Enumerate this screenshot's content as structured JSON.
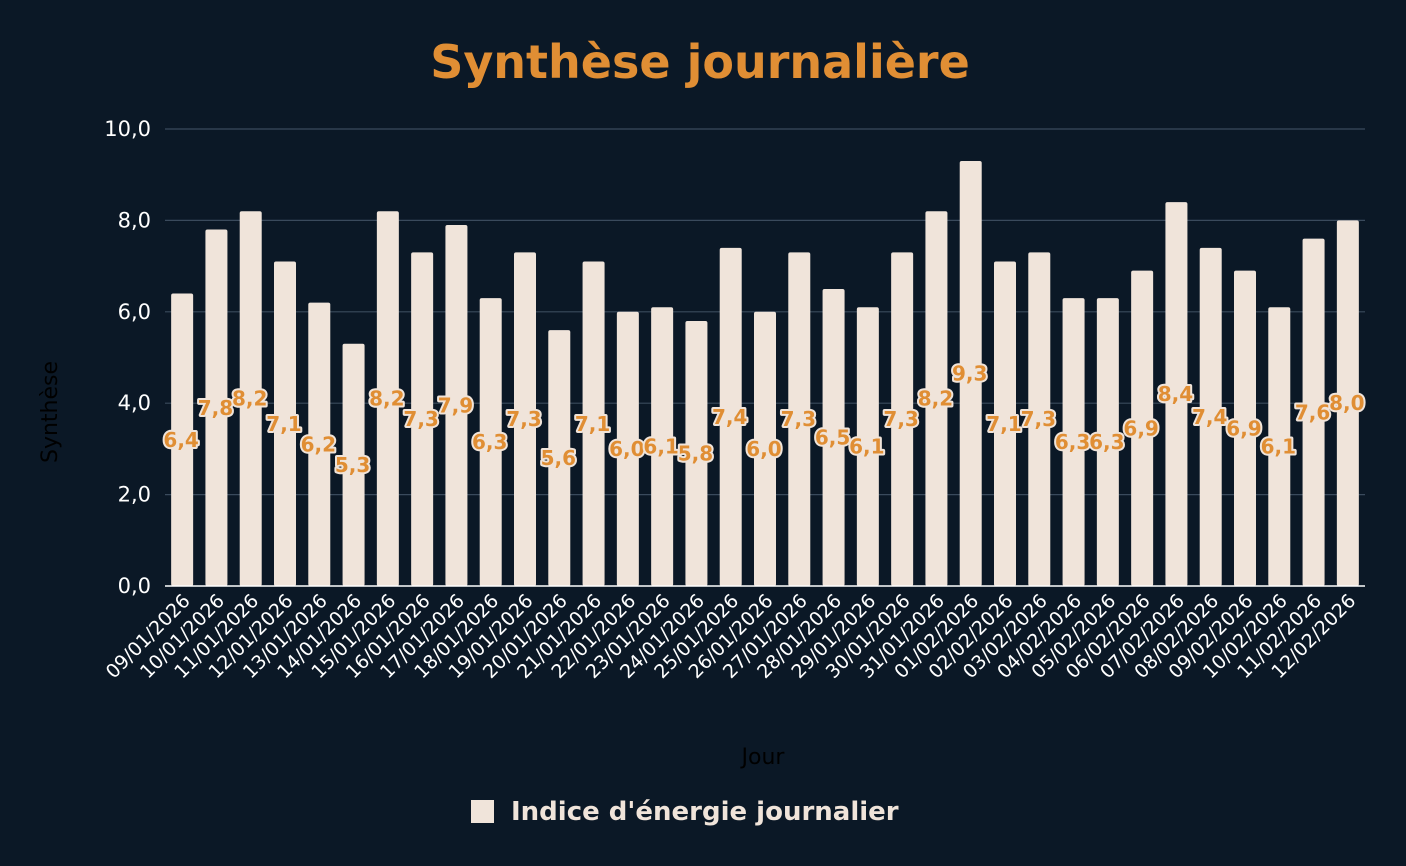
{
  "chart_data": {
    "type": "bar",
    "title": "Synthèse journalière",
    "xlabel": "Jour",
    "ylabel": "Synthèse",
    "ylim": [
      0,
      10
    ],
    "yticks": [
      "0,0",
      "2,0",
      "4,0",
      "6,0",
      "8,0",
      "10,0"
    ],
    "grid": true,
    "legend_position": "bottom",
    "bar_color": "#f0e4da",
    "label_color": "#e08e34",
    "categories": [
      "09/01/2026",
      "10/01/2026",
      "11/01/2026",
      "12/01/2026",
      "13/01/2026",
      "14/01/2026",
      "15/01/2026",
      "16/01/2026",
      "17/01/2026",
      "18/01/2026",
      "19/01/2026",
      "20/01/2026",
      "21/01/2026",
      "22/01/2026",
      "23/01/2026",
      "24/01/2026",
      "25/01/2026",
      "26/01/2026",
      "27/01/2026",
      "28/01/2026",
      "29/01/2026",
      "30/01/2026",
      "31/01/2026",
      "01/02/2026",
      "02/02/2026",
      "03/02/2026",
      "04/02/2026",
      "05/02/2026",
      "06/02/2026",
      "07/02/2026",
      "08/02/2026",
      "09/02/2026",
      "10/02/2026",
      "11/02/2026",
      "12/02/2026"
    ],
    "series": [
      {
        "name": "Indice d'énergie journalier",
        "values": [
          6.4,
          7.8,
          8.2,
          7.1,
          6.2,
          5.3,
          8.2,
          7.3,
          7.9,
          6.3,
          7.3,
          5.6,
          7.1,
          6.0,
          6.1,
          5.8,
          7.4,
          6.0,
          7.3,
          6.5,
          6.1,
          7.3,
          8.2,
          9.3,
          7.1,
          7.3,
          6.3,
          6.3,
          6.9,
          8.4,
          7.4,
          6.9,
          6.1,
          7.6,
          8.0
        ],
        "labels": [
          "6,4",
          "7,8",
          "8,2",
          "7,1",
          "6,2",
          "5,3",
          "8,2",
          "7,3",
          "7,9",
          "6,3",
          "7,3",
          "5,6",
          "7,1",
          "6,0",
          "6,1",
          "5,8",
          "7,4",
          "6,0",
          "7,3",
          "6,5",
          "6,1",
          "7,3",
          "8,2",
          "9,3",
          "7,1",
          "7,3",
          "6,3",
          "6,3",
          "6,9",
          "8,4",
          "7,4",
          "6,9",
          "6,1",
          "7,6",
          "8,0"
        ]
      }
    ]
  }
}
